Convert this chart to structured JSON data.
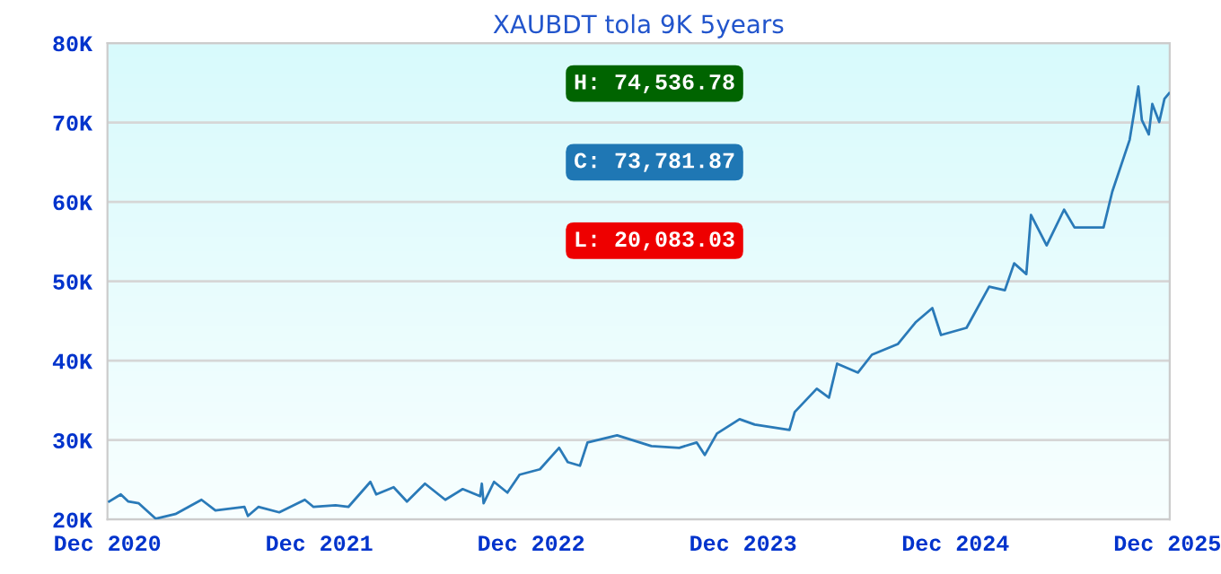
{
  "chart_data": {
    "type": "line",
    "title": "XAUBDT tola 9K 5years",
    "x": [
      "2020-12-04",
      "2020-12-24",
      "2021-01-06",
      "2021-01-24",
      "2021-02-22",
      "2021-03-28",
      "2021-05-12",
      "2021-06-05",
      "2021-07-25",
      "2021-07-31",
      "2021-08-18",
      "2021-09-23",
      "2021-11-06",
      "2021-11-21",
      "2021-12-29",
      "2022-01-20",
      "2022-02-27",
      "2022-03-09",
      "2022-04-08",
      "2022-05-01",
      "2022-06-01",
      "2022-07-06",
      "2022-08-05",
      "2022-09-04",
      "2022-09-07",
      "2022-09-10",
      "2022-09-28",
      "2022-10-21",
      "2022-11-11",
      "2022-12-16",
      "2023-01-18",
      "2023-02-02",
      "2023-02-23",
      "2023-03-08",
      "2023-04-28",
      "2023-06-26",
      "2023-08-13",
      "2023-09-12",
      "2023-09-26",
      "2023-10-17",
      "2023-11-25",
      "2023-12-21",
      "2024-02-19",
      "2024-02-28",
      "2024-04-06",
      "2024-04-27",
      "2024-05-11",
      "2024-06-16",
      "2024-07-10",
      "2024-08-24",
      "2024-09-23",
      "2024-10-22",
      "2024-11-06",
      "2024-12-20",
      "2025-01-28",
      "2025-02-24",
      "2025-03-12",
      "2025-04-02",
      "2025-04-10",
      "2025-05-07",
      "2025-06-06",
      "2025-06-24",
      "2025-08-13",
      "2025-08-22",
      "2025-08-28",
      "2025-09-27",
      "2025-10-12",
      "2025-10-18",
      "2025-10-30",
      "2025-11-05",
      "2025-11-17",
      "2025-11-26",
      "2025-12-04"
    ],
    "series": [
      {
        "color": "#2a7ab8",
        "values": [
          22260,
          23160,
          22260,
          22030,
          20100,
          20680,
          22480,
          21130,
          21580,
          20450,
          21580,
          20900,
          22480,
          21580,
          21800,
          21580,
          24740,
          23160,
          24060,
          22260,
          24510,
          22480,
          23830,
          22930,
          24510,
          22030,
          24740,
          23380,
          25640,
          26320,
          29020,
          27220,
          26770,
          29700,
          30600,
          29250,
          29020,
          29700,
          28120,
          30830,
          32630,
          31950,
          31280,
          33530,
          36470,
          35340,
          39620,
          38500,
          40750,
          42110,
          44810,
          46620,
          43230,
          44140,
          49320,
          48870,
          52260,
          50900,
          58350,
          54510,
          59020,
          56770,
          56770,
          59470,
          61280,
          67820,
          74540,
          70300,
          68500,
          72330,
          70060,
          72990,
          73680
        ]
      }
    ],
    "xlim": [
      "2020-12-01",
      "2025-12-05"
    ],
    "xticks": [
      {
        "value": "2020-12-01",
        "label": "Dec 2020"
      },
      {
        "value": "2021-12-01",
        "label": "Dec 2021"
      },
      {
        "value": "2022-12-01",
        "label": "Dec 2022"
      },
      {
        "value": "2023-12-01",
        "label": "Dec 2023"
      },
      {
        "value": "2024-12-01",
        "label": "Dec 2024"
      },
      {
        "value": "2025-12-01",
        "label": "Dec 2025"
      }
    ],
    "ylim": [
      20000,
      80000
    ],
    "yticks": [
      {
        "value": 20000,
        "label": "20K"
      },
      {
        "value": 30000,
        "label": "30K"
      },
      {
        "value": 40000,
        "label": "40K"
      },
      {
        "value": 50000,
        "label": "50K"
      },
      {
        "value": 60000,
        "label": "60K"
      },
      {
        "value": 70000,
        "label": "70K"
      },
      {
        "value": 80000,
        "label": "80K"
      }
    ],
    "grid": "y",
    "legend": false,
    "marker": "none",
    "line_style": "solid",
    "annotations": [
      "H: 74,536.78",
      "C: 73,781.87",
      "L: 20,083.03"
    ]
  }
}
